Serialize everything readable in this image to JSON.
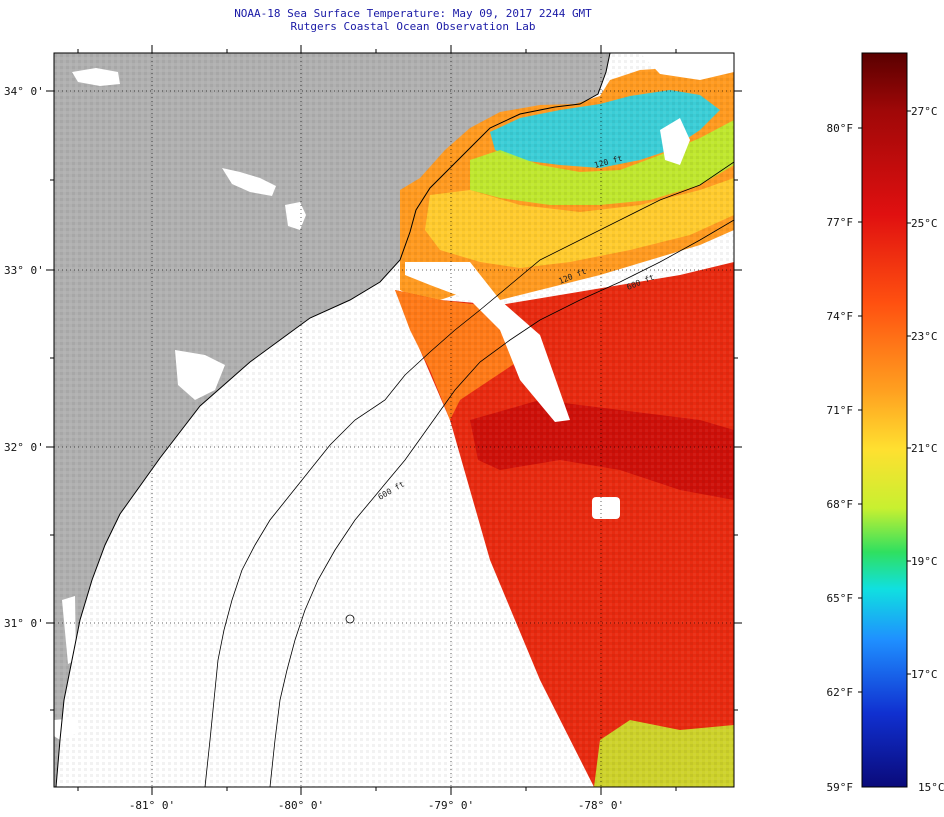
{
  "title": {
    "line1": "NOAA-18 Sea Surface Temperature:  May 09, 2017 2244 GMT",
    "line2": "Rutgers Coastal Ocean Observation Lab"
  },
  "map": {
    "lat_labels": [
      "34° 0'",
      "33° 0'",
      "32° 0'",
      "31° 0'"
    ],
    "lon_labels": [
      "-81° 0'",
      "-80° 0'",
      "-79° 0'",
      "-78° 0'"
    ],
    "contours": [
      "120 ft",
      "600 ft",
      "600 ft",
      "120 ft"
    ],
    "colors": {
      "land": "#b0b0b0",
      "no_data": "#ffffff",
      "border": "#000000"
    }
  },
  "colorbar": {
    "fahrenheit": [
      "80°F",
      "77°F",
      "74°F",
      "71°F",
      "68°F",
      "65°F",
      "62°F",
      "59°F"
    ],
    "celsius": [
      "27°C",
      "25°C",
      "23°C",
      "21°C",
      "19°C",
      "17°C",
      "15°C"
    ],
    "gradient": [
      "#0a0a7a",
      "#1030d0",
      "#1f8fff",
      "#10e0e0",
      "#2fe060",
      "#c8f030",
      "#ffe030",
      "#ffa020",
      "#ff5010",
      "#e01010",
      "#a00808",
      "#5a0000"
    ]
  }
}
